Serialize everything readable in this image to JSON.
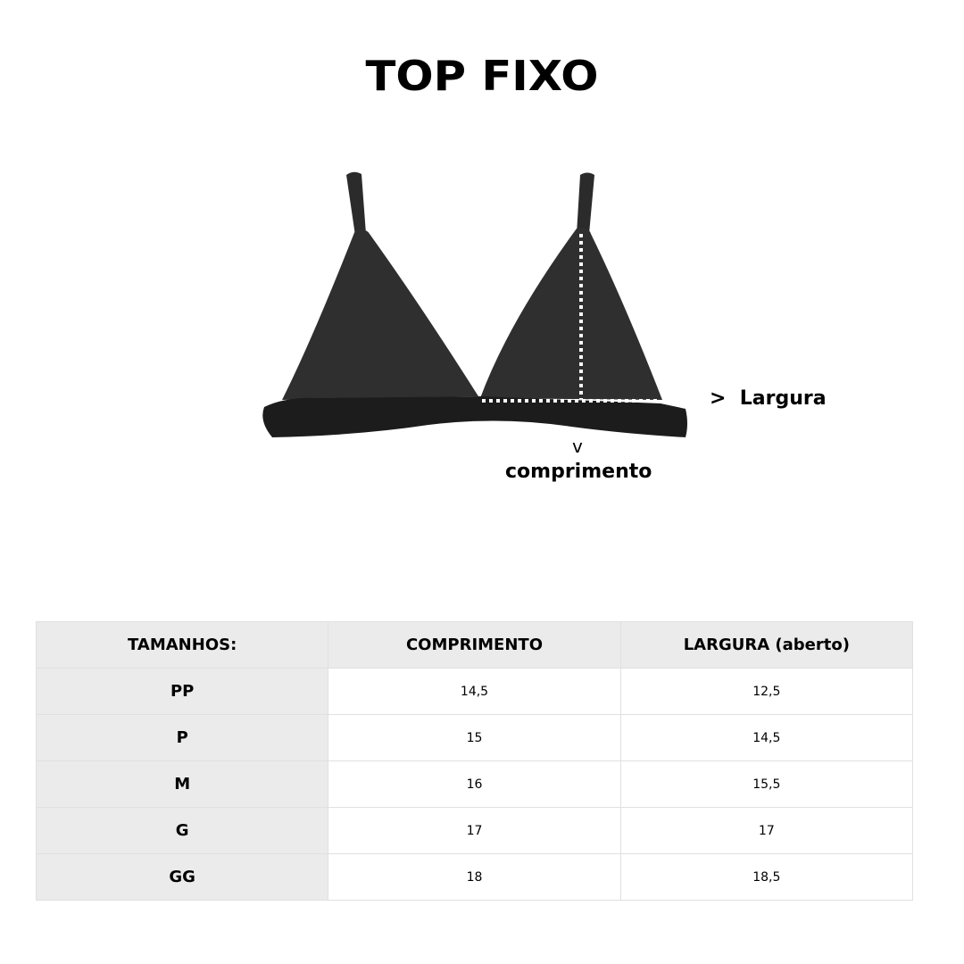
{
  "title": "TOP FIXO",
  "diagram": {
    "width_label": ">  Largura",
    "length_arrow": "v",
    "length_label": "comprimento",
    "garment_color": "#2b2b2b",
    "measure_line_color": "#ffffff"
  },
  "table": {
    "headers": [
      "TAMANHOS:",
      "COMPRIMENTO",
      "LARGURA (aberto)"
    ],
    "rows": [
      {
        "size": "PP",
        "comprimento": "14,5",
        "largura": "12,5"
      },
      {
        "size": "P",
        "comprimento": "15",
        "largura": "14,5"
      },
      {
        "size": "M",
        "comprimento": "16",
        "largura": "15,5"
      },
      {
        "size": "G",
        "comprimento": "17",
        "largura": "17"
      },
      {
        "size": "GG",
        "comprimento": "18",
        "largura": "18,5"
      }
    ],
    "header_bg": "#ebebeb"
  }
}
